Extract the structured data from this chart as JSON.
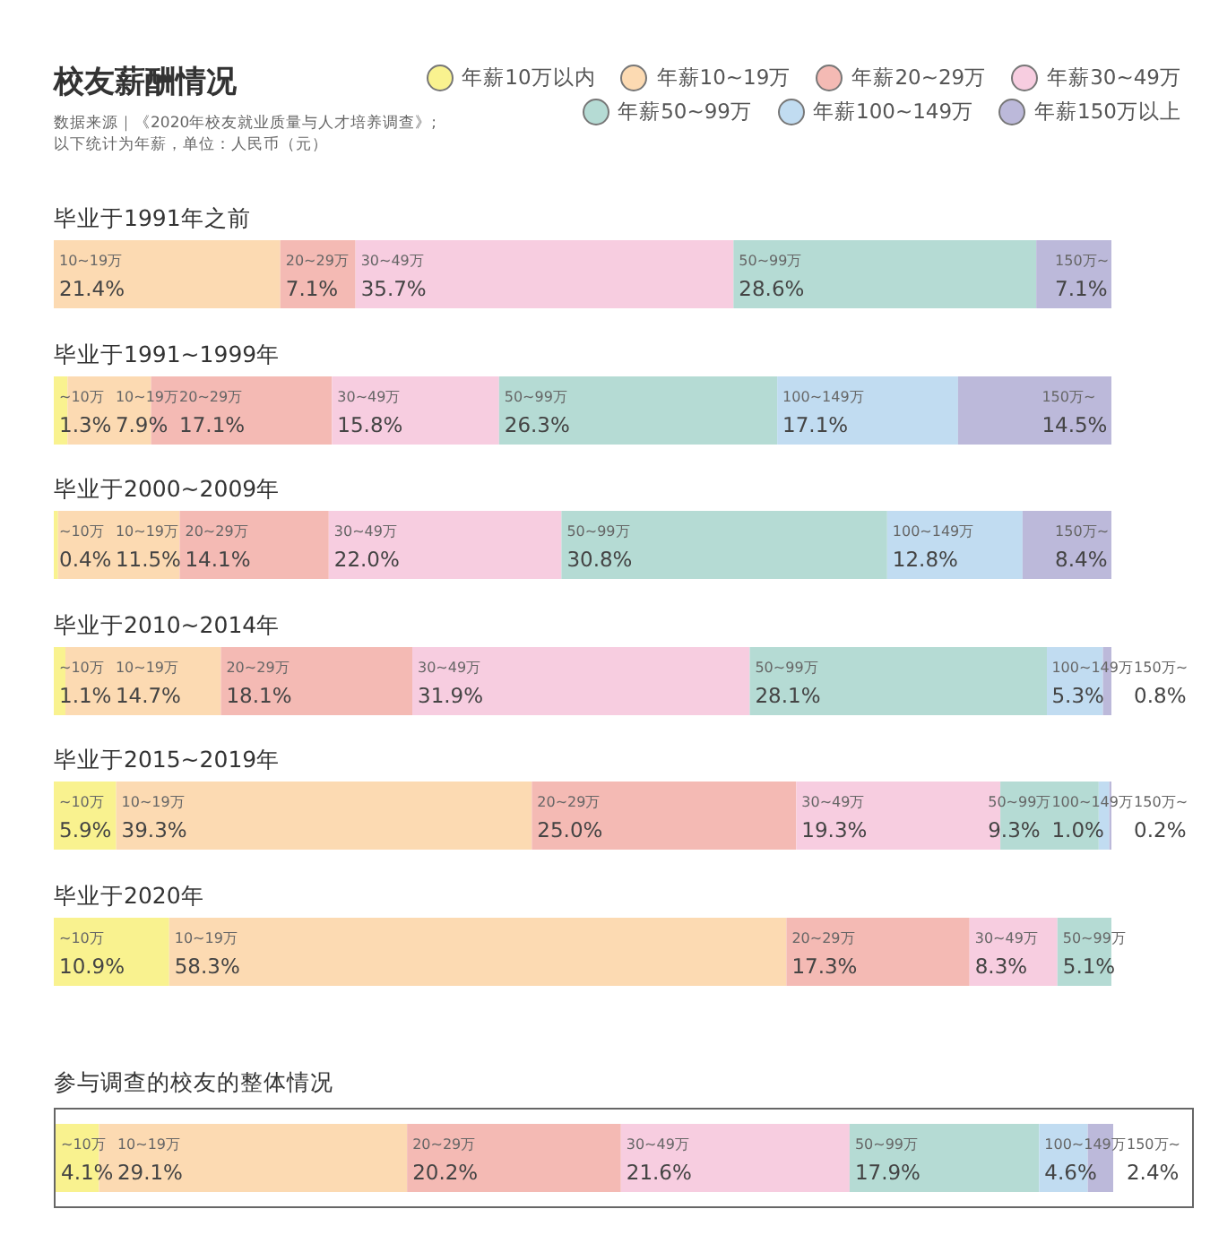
{
  "chart_data": [
    {
      "type": "bar",
      "orientation": "horizontal",
      "stacked": true,
      "title": "校友薪酬情况",
      "subtitle": "数据来源｜《2020年校友就业质量与人才培养调查》;",
      "annotations": [
        "以下统计为年薪，单位：人民币（元）"
      ],
      "legend": "top right",
      "categories": [
        "毕业于1991年之前",
        "毕业于1991~1999年",
        "毕业于2000~2009年",
        "毕业于2010~2014年",
        "毕业于2015~2019年",
        "毕业于2020年"
      ],
      "series": [
        {
          "name": "年薪10万以内",
          "color": "#f9f28f",
          "values": [
            null,
            1.3,
            0.4,
            1.1,
            5.9,
            10.9
          ],
          "value_labels": [
            null,
            "~10万\n1.3%",
            "~10万\n0.4%",
            "~10万\n1.1%",
            "~10万\n5.9%",
            "~10万\n10.9%"
          ]
        },
        {
          "name": "年薪10~19万",
          "color": "#fcdab2",
          "values": [
            21.4,
            7.9,
            11.5,
            14.7,
            39.3,
            58.3
          ],
          "value_labels": [
            "10~19万\n21.4%",
            "10~19万\n7.9%",
            "10~19万\n11.5%",
            "10~19万\n14.7%",
            "10~19万\n39.3%",
            "10~19万\n58.3%"
          ]
        },
        {
          "name": "年薪20~29万",
          "color": "#f4bab4",
          "values": [
            7.1,
            17.1,
            14.1,
            18.1,
            25.0,
            17.3
          ],
          "value_labels": [
            "20~29万\n7.1%",
            "20~29万\n17.1%",
            "20~29万\n14.1%",
            "20~29万\n18.1%",
            "20~29万\n25.0%",
            "20~29万\n17.3%"
          ]
        },
        {
          "name": "年薪30~49万",
          "color": "#f7cde0",
          "values": [
            35.7,
            15.8,
            22.0,
            31.9,
            19.3,
            8.3
          ],
          "value_labels": [
            "30~49万\n35.7%",
            "30~49万\n15.8%",
            "30~49万\n22.0%",
            "30~49万\n31.9%",
            "30~49万\n19.3%",
            "30~49万\n8.3%"
          ]
        },
        {
          "name": "年薪50~99万",
          "color": "#b5dbd4",
          "values": [
            28.6,
            26.3,
            30.8,
            28.1,
            9.3,
            5.1
          ],
          "value_labels": [
            "50~99万\n28.6%",
            "50~99万\n26.3%",
            "50~99万\n30.8%",
            "50~99万\n28.1%",
            "50~99万\n9.3%",
            "50~99万\n5.1%"
          ]
        },
        {
          "name": "年薪100~149万",
          "color": "#c1dcf1",
          "values": [
            null,
            17.1,
            12.8,
            5.3,
            1.0,
            null
          ],
          "value_labels": [
            null,
            "100~149万\n17.1%",
            "100~149万\n12.8%",
            "100~149万\n5.3%",
            "100~149万\n1.0%",
            null
          ]
        },
        {
          "name": "年薪150万以上",
          "color": "#bcb9da",
          "values": [
            7.1,
            14.5,
            8.4,
            0.8,
            0.2,
            null
          ],
          "value_labels": [
            "150万~\n7.1%",
            "150万~\n14.5%",
            "150万~\n8.4%",
            "150万~\n0.8%",
            "150万~\n0.2%",
            null
          ]
        }
      ]
    },
    {
      "type": "bar",
      "orientation": "horizontal",
      "stacked": true,
      "title": "参与调查的校友的整体情况",
      "categories": [
        null
      ],
      "series": [
        {
          "color": "#f9f28f",
          "values": [
            4.1
          ],
          "value_labels": [
            "~10万\n4.1%"
          ]
        },
        {
          "color": "#fcdab2",
          "values": [
            29.1
          ],
          "value_labels": [
            "10~19万\n29.1%"
          ]
        },
        {
          "color": "#f4bab4",
          "values": [
            20.2
          ],
          "value_labels": [
            "20~29万\n20.2%"
          ]
        },
        {
          "color": "#f7cde0",
          "values": [
            21.6
          ],
          "value_labels": [
            "30~49万\n21.6%"
          ]
        },
        {
          "color": "#b5dbd4",
          "values": [
            17.9
          ],
          "value_labels": [
            "50~99万\n17.9%"
          ]
        },
        {
          "color": "#c1dcf1",
          "values": [
            4.6
          ],
          "value_labels": [
            "100~149万\n4.6%"
          ]
        },
        {
          "color": "#bcb9da",
          "values": [
            2.4
          ],
          "value_labels": [
            "150万~\n2.4%"
          ]
        }
      ]
    }
  ]
}
